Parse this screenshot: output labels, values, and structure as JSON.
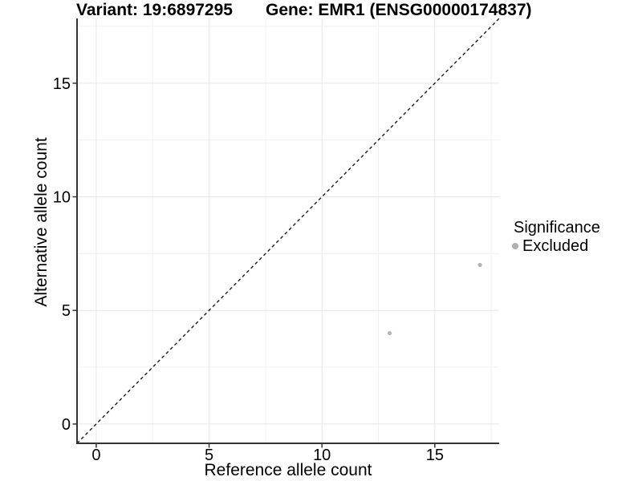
{
  "chart_data": {
    "type": "scatter",
    "titles": {
      "left": "Variant: 19:6897295",
      "right": "Gene: EMR1 (ENSG00000174837)"
    },
    "xlabel": "Reference allele count",
    "ylabel": "Alternative allele count",
    "xlim": [
      -0.85,
      17.85
    ],
    "ylim": [
      -0.85,
      17.85
    ],
    "xticks": [
      0,
      5,
      10,
      15
    ],
    "yticks": [
      0,
      5,
      10,
      15
    ],
    "minor_breaks": [
      2.5,
      7.5,
      12.5,
      17.5
    ],
    "grid": "major+minor",
    "identity_line": {
      "slope": 1,
      "intercept": 0,
      "style": "dashed",
      "color": "#1a1a1a"
    },
    "series": [
      {
        "name": "Excluded",
        "color": "#b5b5b5",
        "points": [
          {
            "x": 13,
            "y": 4
          },
          {
            "x": 17,
            "y": 7
          }
        ]
      }
    ],
    "legend": {
      "title": "Significance",
      "position": "right",
      "entries": [
        {
          "label": "Excluded",
          "color": "#b0b0b0"
        }
      ]
    }
  },
  "colors": {
    "background": "#ffffff",
    "major_grid": "#e7e7e7",
    "minor_grid": "#f1f1f1",
    "axis_line": "#333333",
    "tick_mark": "#333333",
    "text": "#000000"
  }
}
